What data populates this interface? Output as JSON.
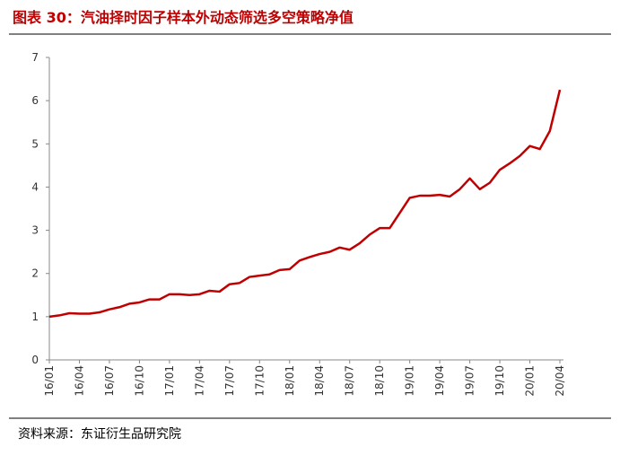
{
  "chart_data": {
    "type": "line",
    "title": "图表 30：汽油择时因子样本外动态筛选多空策略净值",
    "source": "资料来源：东证衍生品研究院",
    "categories": [
      "16/01",
      null,
      null,
      "16/04",
      null,
      null,
      "16/07",
      null,
      null,
      "16/10",
      null,
      null,
      "17/01",
      null,
      null,
      "17/04",
      null,
      null,
      "17/07",
      null,
      null,
      "17/10",
      null,
      null,
      "18/01",
      null,
      null,
      "18/04",
      null,
      null,
      "18/07",
      null,
      null,
      "18/10",
      null,
      null,
      "19/01",
      null,
      null,
      "19/04",
      null,
      null,
      "19/07",
      null,
      null,
      "19/10",
      null,
      null,
      "20/01",
      null,
      null,
      "20/04"
    ],
    "values": [
      1.0,
      1.03,
      1.08,
      1.07,
      1.07,
      1.1,
      1.17,
      1.22,
      1.3,
      1.33,
      1.4,
      1.4,
      1.52,
      1.52,
      1.5,
      1.52,
      1.6,
      1.58,
      1.75,
      1.78,
      1.92,
      1.95,
      1.98,
      2.08,
      2.1,
      2.3,
      2.38,
      2.45,
      2.5,
      2.6,
      2.55,
      2.7,
      2.9,
      3.05,
      3.05,
      3.4,
      3.75,
      3.8,
      3.8,
      3.82,
      3.78,
      3.95,
      4.2,
      3.95,
      4.1,
      4.4,
      4.55,
      4.72,
      4.95,
      4.88,
      5.3,
      6.25
    ],
    "color": "#c00000",
    "ylim": [
      0,
      7
    ],
    "yticks": [
      0,
      1,
      2,
      3,
      4,
      5,
      6,
      7
    ]
  }
}
